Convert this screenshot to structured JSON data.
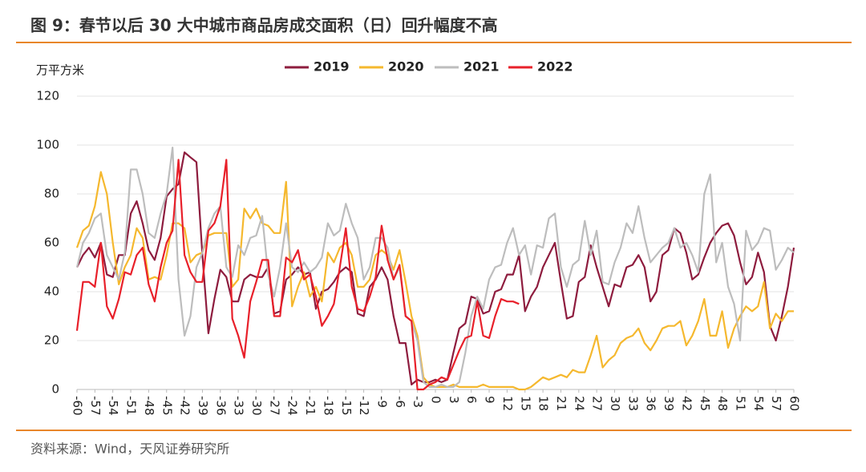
{
  "chart_data": {
    "type": "line",
    "title": "图 9：春节以后 30 大中城市商品房成交面积（日）回升幅度不高",
    "y_axis_label": "万平方米",
    "source": "资料来源：Wind，天风证券研究所",
    "x": [
      -60,
      -59,
      -58,
      -57,
      -56,
      -55,
      -54,
      -53,
      -52,
      -51,
      -50,
      -49,
      -48,
      -47,
      -46,
      -45,
      -44,
      -43,
      -42,
      -41,
      -40,
      -39,
      -38,
      -37,
      -36,
      -35,
      -34,
      -33,
      -32,
      -31,
      -30,
      -29,
      -28,
      -27,
      -26,
      -25,
      -24,
      -23,
      -22,
      -21,
      -20,
      -19,
      -18,
      -17,
      -16,
      -15,
      -14,
      -13,
      -12,
      -11,
      -10,
      -9,
      -8,
      -7,
      -6,
      -5,
      -4,
      -3,
      -2,
      -1,
      0,
      1,
      2,
      3,
      4,
      5,
      6,
      7,
      8,
      9,
      10,
      11,
      12,
      13,
      14,
      15,
      16,
      17,
      18,
      19,
      20,
      21,
      22,
      23,
      24,
      25,
      26,
      27,
      28,
      29,
      30,
      31,
      32,
      33,
      34,
      35,
      36,
      37,
      38,
      39,
      40,
      41,
      42,
      43,
      44,
      45,
      46,
      47,
      48,
      49,
      50,
      51,
      52,
      53,
      54,
      55,
      56,
      57,
      58,
      59,
      60
    ],
    "series": [
      {
        "name": "2019",
        "color": "#8e1c3e",
        "values": [
          50,
          55,
          58,
          54,
          60,
          47,
          46,
          55,
          55,
          72,
          77,
          68,
          57,
          53,
          62,
          79,
          82,
          84,
          97,
          95,
          93,
          55,
          23,
          37,
          49,
          46,
          36,
          36,
          45,
          47,
          46,
          46,
          50,
          31,
          32,
          45,
          47,
          50,
          47,
          48,
          33,
          40,
          41,
          44,
          48,
          50,
          48,
          31,
          30,
          42,
          45,
          50,
          45,
          30,
          19,
          19,
          2,
          4,
          3,
          3,
          4,
          3,
          4,
          15,
          25,
          27,
          38,
          37,
          31,
          32,
          40,
          41,
          47,
          47,
          55,
          32,
          38,
          42,
          50,
          55,
          60,
          44,
          29,
          30,
          44,
          46,
          59,
          50,
          42,
          34,
          43,
          42,
          50,
          51,
          55,
          50,
          36,
          40,
          55,
          57,
          66,
          64,
          56,
          45,
          47,
          54,
          60,
          64,
          67,
          68,
          63,
          52,
          43,
          46,
          56,
          48,
          26,
          20,
          30,
          42,
          58
        ]
      },
      {
        "name": "2020",
        "color": "#f5b82e",
        "values": [
          58,
          65,
          67,
          75,
          89,
          80,
          60,
          43,
          50,
          55,
          66,
          62,
          45,
          46,
          45,
          55,
          68,
          68,
          66,
          52,
          55,
          56,
          63,
          64,
          64,
          64,
          42,
          45,
          74,
          70,
          74,
          68,
          67,
          64,
          64,
          85,
          34,
          42,
          48,
          38,
          42,
          36,
          56,
          52,
          58,
          60,
          55,
          42,
          42,
          45,
          55,
          57,
          55,
          49,
          57,
          44,
          30,
          22,
          5,
          2,
          1,
          1,
          1,
          2,
          1,
          1,
          1,
          1,
          2,
          1,
          1,
          1,
          1,
          1,
          0,
          0,
          1,
          3,
          5,
          4,
          5,
          6,
          5,
          8,
          7,
          7,
          14,
          22,
          9,
          12,
          14,
          19,
          21,
          22,
          25,
          19,
          16,
          20,
          25,
          26,
          26,
          28,
          18,
          22,
          28,
          37,
          22,
          22,
          32,
          17,
          25,
          30,
          34,
          32,
          34,
          44,
          25,
          31,
          28,
          32,
          32
        ]
      },
      {
        "name": "2021",
        "color": "#bdbdbd",
        "values": [
          50,
          60,
          64,
          70,
          72,
          55,
          50,
          45,
          56,
          90,
          90,
          80,
          64,
          62,
          72,
          80,
          99,
          45,
          22,
          30,
          50,
          56,
          66,
          72,
          75,
          50,
          46,
          59,
          55,
          62,
          63,
          71,
          47,
          38,
          50,
          68,
          50,
          48,
          52,
          48,
          50,
          54,
          68,
          63,
          65,
          76,
          68,
          62,
          45,
          50,
          62,
          62,
          58,
          45,
          50,
          30,
          28,
          20,
          3,
          1,
          1,
          2,
          1,
          1,
          3,
          15,
          30,
          38,
          33,
          45,
          50,
          51,
          60,
          66,
          55,
          59,
          47,
          59,
          58,
          70,
          72,
          50,
          42,
          51,
          53,
          69,
          55,
          65,
          44,
          43,
          52,
          58,
          68,
          64,
          75,
          62,
          52,
          55,
          58,
          60,
          66,
          58,
          60,
          55,
          48,
          80,
          88,
          52,
          60,
          42,
          35,
          20,
          65,
          57,
          60,
          66,
          65,
          49,
          53,
          58,
          56
        ]
      },
      {
        "name": "2022",
        "color": "#e8202a",
        "values": [
          24,
          44,
          44,
          42,
          60,
          34,
          29,
          37,
          48,
          47,
          55,
          58,
          43,
          36,
          50,
          60,
          65,
          94,
          55,
          48,
          44,
          44,
          65,
          68,
          75,
          94,
          29,
          22,
          13,
          36,
          44,
          53,
          53,
          30,
          30,
          54,
          52,
          57,
          45,
          47,
          38,
          26,
          30,
          35,
          50,
          66,
          42,
          33,
          32,
          38,
          46,
          67,
          53,
          45,
          51,
          30,
          28,
          0,
          0,
          2,
          3,
          5,
          4,
          10,
          16,
          21,
          22,
          36,
          22,
          21,
          30,
          37,
          36,
          36,
          35,
          null,
          null,
          null,
          null,
          null,
          null,
          null,
          null,
          null,
          null,
          null,
          null,
          null,
          null,
          null,
          null,
          null,
          null,
          null,
          null,
          null,
          null,
          null,
          null,
          null,
          null,
          null,
          null,
          null,
          null,
          null,
          null,
          null,
          null,
          null,
          null,
          null,
          null,
          null,
          null,
          null,
          null,
          null,
          null,
          null,
          null
        ]
      }
    ],
    "xlim": [
      -60,
      60
    ],
    "xticks": [
      -60,
      -57,
      -54,
      -51,
      -48,
      -45,
      -42,
      -39,
      -36,
      -33,
      -30,
      -27,
      -24,
      -21,
      -18,
      -15,
      -12,
      -9,
      -6,
      -3,
      0,
      3,
      6,
      9,
      12,
      15,
      18,
      21,
      24,
      27,
      30,
      33,
      36,
      39,
      42,
      45,
      48,
      51,
      54,
      57,
      60
    ],
    "ylim": [
      0,
      120
    ],
    "yticks": [
      0,
      20,
      40,
      60,
      80,
      100,
      120
    ],
    "grid": true,
    "legend": "top"
  }
}
